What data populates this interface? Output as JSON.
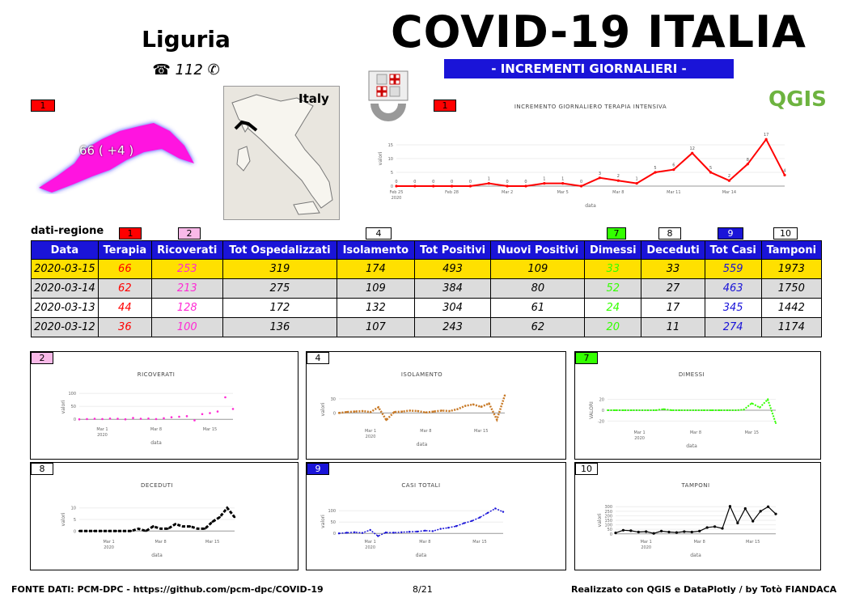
{
  "header": {
    "region": "Liguria",
    "phone": "☎ 112 ✆",
    "title": "COVID-19 ITALIA",
    "subtitle": "- INCREMENTI GIORNALIERI -",
    "logo_text": "QGIS",
    "map_label": "Italy",
    "region_value": "66 ( +4 )"
  },
  "badges": {
    "b1": "1",
    "b2": "2",
    "b4": "4",
    "b7": "7",
    "b8": "8",
    "b9": "9",
    "b10": "10"
  },
  "colors": {
    "terapia": "#ff0000",
    "ricoverati": "#ff2ad4",
    "isolamento": "#c87a28",
    "dimessi": "#33ff00",
    "deceduti": "#000000",
    "casi": "#1a14d8",
    "tamponi": "#000000",
    "header_blue": "#1a14d8",
    "highlight_row": "#ffe000"
  },
  "table": {
    "label": "dati-regione",
    "columns": [
      "Data",
      "Terapia",
      "Ricoverati",
      "Tot Ospedalizzati",
      "Isolamento",
      "Tot Positivi",
      "Nuovi Positivi",
      "Dimessi",
      "Deceduti",
      "Tot Casi",
      "Tamponi"
    ],
    "rows": [
      [
        "2020-03-15",
        "66",
        "253",
        "319",
        "174",
        "493",
        "109",
        "33",
        "33",
        "559",
        "1973"
      ],
      [
        "2020-03-14",
        "62",
        "213",
        "275",
        "109",
        "384",
        "80",
        "52",
        "27",
        "463",
        "1750"
      ],
      [
        "2020-03-13",
        "44",
        "128",
        "172",
        "132",
        "304",
        "61",
        "24",
        "17",
        "345",
        "1442"
      ],
      [
        "2020-03-12",
        "36",
        "100",
        "136",
        "107",
        "243",
        "62",
        "20",
        "11",
        "274",
        "1174"
      ]
    ]
  },
  "chart_data": [
    {
      "id": "terapia",
      "type": "line",
      "title": "INCREMENTO GIORNALIERO TERAPIA INTENSIVA",
      "xlabel": "data",
      "ylabel": "valori",
      "ylim": [
        0,
        20
      ],
      "yticks": [
        "0",
        "5",
        "10",
        "15"
      ],
      "xticks": [
        "Feb 25",
        "Feb 28",
        "Mar 2",
        "Mar 5",
        "Mar 8",
        "Mar 11",
        "Mar 14"
      ],
      "xyear": "2020",
      "values": [
        0,
        0,
        0,
        0,
        0,
        1,
        0,
        0,
        1,
        1,
        0,
        3,
        2,
        1,
        5,
        6,
        12,
        5,
        2,
        8,
        17,
        4
      ],
      "labels": [
        "0",
        "0",
        "0",
        "0",
        "0",
        "1",
        "0",
        "0",
        "1",
        "1",
        "0",
        "3",
        "2",
        "1",
        "5",
        "6",
        "12",
        "5",
        "2",
        "8",
        "17",
        "4"
      ]
    },
    {
      "id": "ricoverati",
      "type": "scatter",
      "title": "RICOVERATI",
      "xlabel": "data",
      "ylabel": "valori",
      "ylim": [
        -15,
        110
      ],
      "yticks": [
        "0",
        "50",
        "100"
      ],
      "xticks": [
        "Mar 1",
        "Mar 8",
        "Mar 15"
      ],
      "xyear": "2020",
      "values": [
        0,
        1,
        2,
        1,
        3,
        2,
        0,
        5,
        2,
        3,
        1,
        4,
        8,
        10,
        12,
        -4,
        20,
        24,
        30,
        85,
        40
      ]
    },
    {
      "id": "isolamento",
      "type": "line",
      "title": "ISOLAMENTO",
      "xlabel": "data",
      "ylabel": "valori",
      "ylim": [
        -25,
        40
      ],
      "yticks": [
        "0",
        "30"
      ],
      "xticks": [
        "Mar 1",
        "Mar 8",
        "Mar 15"
      ],
      "xyear": "2020",
      "values": [
        0,
        2,
        3,
        4,
        2,
        12,
        -15,
        2,
        3,
        5,
        4,
        1,
        3,
        5,
        4,
        8,
        15,
        18,
        13,
        20,
        -14,
        37
      ]
    },
    {
      "id": "dimessi",
      "type": "line",
      "title": "DIMESSI",
      "xlabel": "data",
      "ylabel": "VALORI",
      "ylim": [
        -30,
        30
      ],
      "yticks": [
        "20",
        "0",
        "-20"
      ],
      "xticks": [
        "Mar 1",
        "Mar 8",
        "Mar 15"
      ],
      "xyear": "2020",
      "values": [
        0,
        0,
        0,
        0,
        0,
        0,
        0,
        2,
        0,
        0,
        0,
        0,
        0,
        0,
        0,
        0,
        0,
        1,
        13,
        5,
        20,
        -24
      ]
    },
    {
      "id": "deceduti",
      "type": "line",
      "title": "DECEDUTI",
      "xlabel": "data",
      "ylabel": "valori",
      "ylim": [
        -2,
        12
      ],
      "yticks": [
        "0",
        "5",
        "10"
      ],
      "xticks": [
        "Mar 1",
        "Mar 8",
        "Mar 15"
      ],
      "xyear": "2020",
      "values": [
        0,
        0,
        0,
        0,
        0,
        0,
        0,
        0,
        1,
        0,
        2,
        1,
        1,
        3,
        2,
        2,
        1,
        1,
        4,
        6,
        10,
        6
      ]
    },
    {
      "id": "casi",
      "type": "line",
      "title": "CASI TOTALI",
      "xlabel": "data",
      "ylabel": "valori",
      "ylim": [
        -10,
        115
      ],
      "yticks": [
        "0",
        "50",
        "100"
      ],
      "xticks": [
        "Mar 1",
        "Mar 8",
        "Mar 15"
      ],
      "xyear": "2020",
      "values": [
        0,
        3,
        5,
        2,
        15,
        -12,
        4,
        3,
        5,
        7,
        8,
        12,
        10,
        20,
        25,
        32,
        45,
        55,
        70,
        90,
        110,
        95
      ]
    },
    {
      "id": "tamponi",
      "type": "line",
      "title": "TAMPONI",
      "xlabel": "data",
      "ylabel": "valori",
      "ylim": [
        -20,
        320
      ],
      "yticks": [
        "0",
        "50",
        "100",
        "150",
        "200",
        "250",
        "300"
      ],
      "xticks": [
        "Mar 1",
        "Mar 8",
        "Mar 15"
      ],
      "xyear": "2020",
      "values": [
        10,
        40,
        35,
        20,
        25,
        5,
        30,
        20,
        15,
        25,
        20,
        30,
        70,
        80,
        60,
        305,
        120,
        280,
        140,
        250,
        300,
        220
      ]
    }
  ],
  "panels": {
    "ricoverati_badge": "2",
    "isolamento_badge": "4",
    "dimessi_badge": "7",
    "deceduti_badge": "8",
    "casi_badge": "9",
    "tamponi_badge": "10"
  },
  "footer": {
    "source": "FONTE DATI: PCM-DPC - https://github.com/pcm-dpc/COVID-19",
    "page": "8/21",
    "credits": "Realizzato con QGIS e DataPlotly / by Totò FIANDACA"
  }
}
